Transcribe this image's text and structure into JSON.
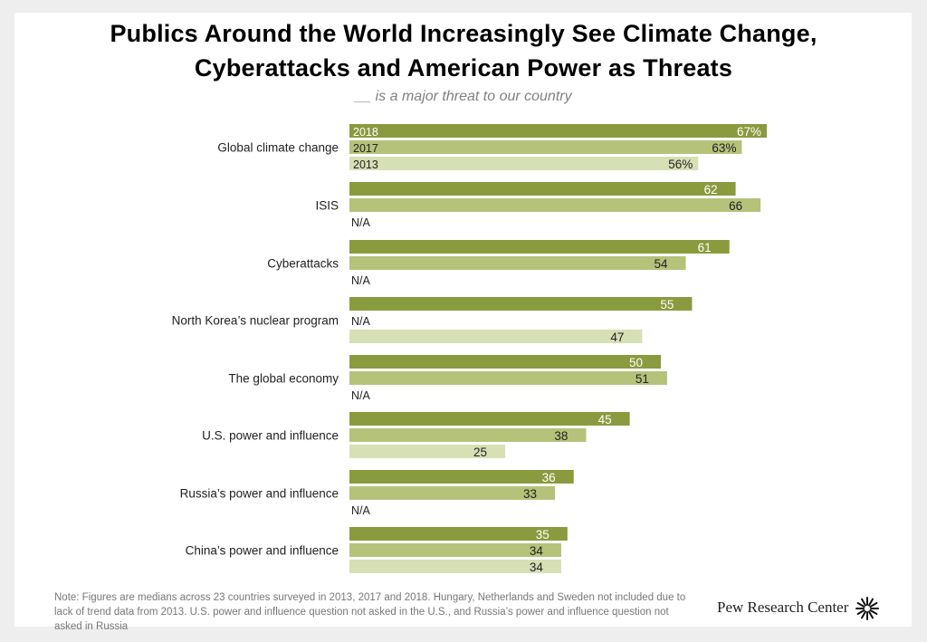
{
  "chart_data": {
    "type": "bar",
    "orientation": "horizontal",
    "title": "Publics Around the World Increasingly See Climate Change, Cyberattacks and American Power as Threats",
    "subtitle": "__ is a major threat to our country",
    "unit": "%",
    "series": [
      {
        "name": "2018",
        "color": "#8a9a3e",
        "label_color": "#ffffff"
      },
      {
        "name": "2017",
        "color": "#b5c27a",
        "label_color": "#222222"
      },
      {
        "name": "2013",
        "color": "#d7dfb5",
        "label_color": "#222222"
      }
    ],
    "categories": [
      {
        "name": "Global climate change",
        "values": [
          67,
          63,
          56
        ],
        "labels": [
          "67%",
          "63%",
          "56%"
        ]
      },
      {
        "name": "ISIS",
        "values": [
          62,
          66,
          null
        ],
        "labels": [
          "62",
          "66",
          "N/A"
        ]
      },
      {
        "name": "Cyberattacks",
        "values": [
          61,
          54,
          null
        ],
        "labels": [
          "61",
          "54",
          "N/A"
        ]
      },
      {
        "name": "North Korea’s nuclear program",
        "values": [
          55,
          null,
          47
        ],
        "labels": [
          "55",
          "N/A",
          "47"
        ]
      },
      {
        "name": "The global economy",
        "values": [
          50,
          51,
          null
        ],
        "labels": [
          "50",
          "51",
          "N/A"
        ]
      },
      {
        "name": "U.S. power and influence",
        "values": [
          45,
          38,
          25
        ],
        "labels": [
          "45",
          "38",
          "25"
        ]
      },
      {
        "name": "Russia’s power and influence",
        "values": [
          36,
          33,
          null
        ],
        "labels": [
          "36",
          "33",
          "N/A"
        ]
      },
      {
        "name": "China’s power and influence",
        "values": [
          35,
          34,
          34
        ],
        "labels": [
          "35",
          "34",
          "34"
        ]
      }
    ],
    "xlim": [
      0,
      67
    ]
  },
  "note": "Note: Figures are medians across 23 countries surveyed in 2013, 2017 and 2018. Hungary, Netherlands and Sweden not included due to lack of trend data from 2013. U.S. power and influence question not asked in the U.S., and Russia’s power and influence question not asked in Russia",
  "brand": "Pew Research Center"
}
